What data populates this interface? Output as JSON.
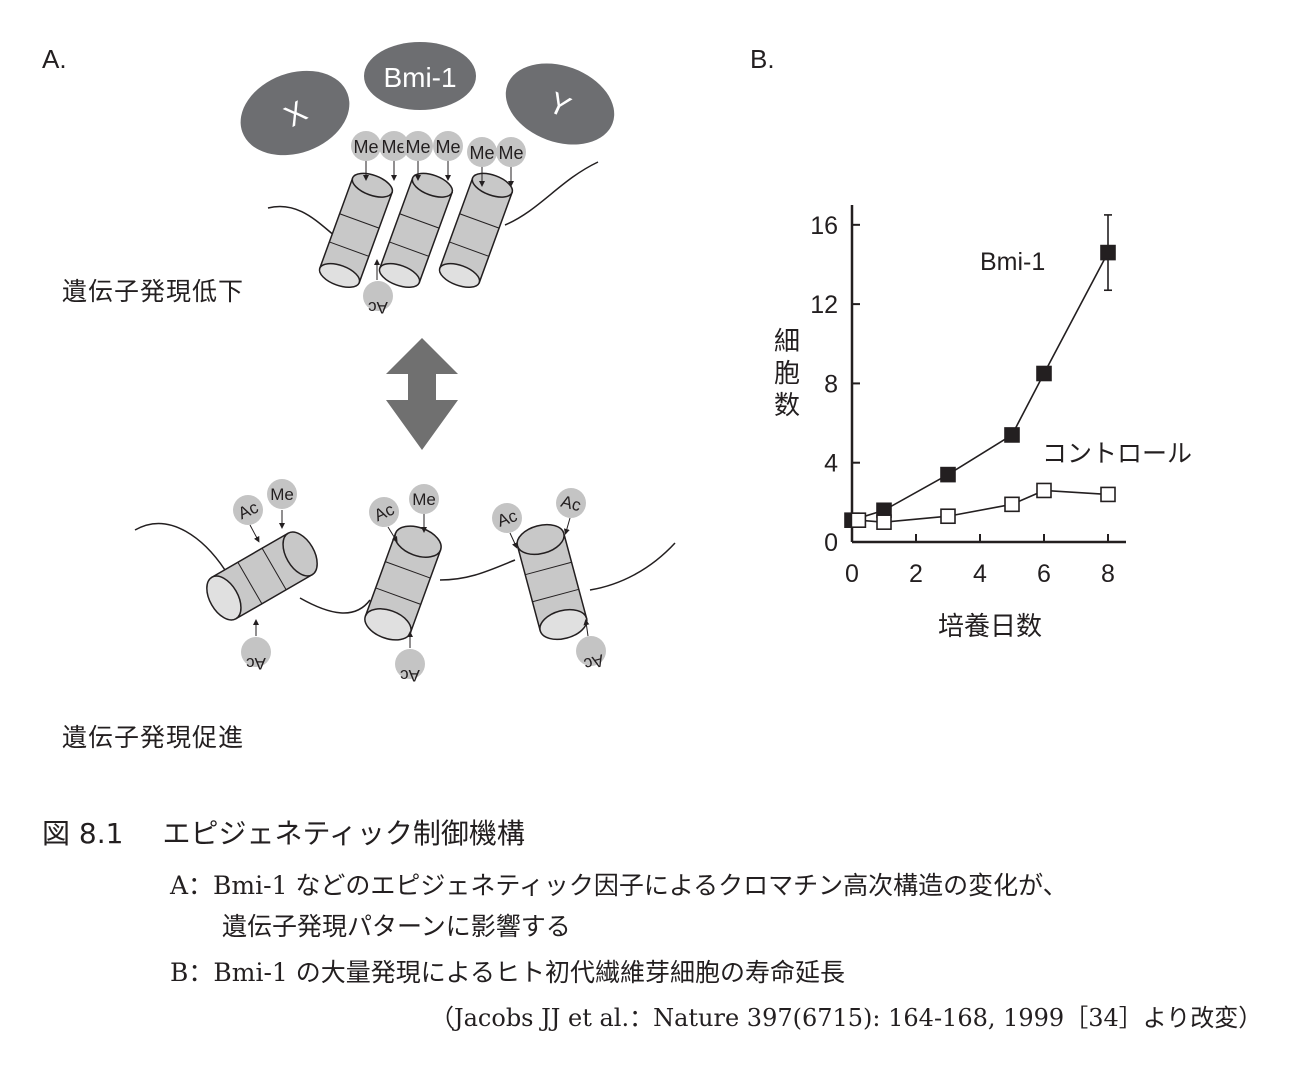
{
  "panel_a": {
    "label": "A.",
    "bmi1_label": "Bmi-1",
    "x_label": "X",
    "y_label": "Y",
    "me": "Me",
    "ac": "Ac",
    "low_expression": "遺伝子発現低下",
    "high_expression": "遺伝子発現促進"
  },
  "panel_b": {
    "label": "B.",
    "chart_data": {
      "type": "line",
      "xlabel": "培養日数",
      "ylabel": "細胞数",
      "xlim": [
        0,
        9
      ],
      "ylim": [
        0,
        17
      ],
      "xticks": [
        0,
        2,
        4,
        6,
        8
      ],
      "yticks": [
        0,
        4,
        8,
        12,
        16
      ],
      "grid": false,
      "series": [
        {
          "name": "Bmi-1",
          "marker": "filled-square",
          "color": "#231f20",
          "x": [
            0,
            1,
            3,
            5,
            6,
            8
          ],
          "y": [
            1.1,
            1.6,
            3.4,
            5.4,
            8.5,
            14.6
          ],
          "error_bar": {
            "index": 5,
            "low": 12.7,
            "high": 16.5
          }
        },
        {
          "name": "コントロール",
          "marker": "open-square",
          "color": "#231f20",
          "x": [
            0.2,
            1,
            3,
            5,
            6,
            8
          ],
          "y": [
            1.1,
            1.0,
            1.3,
            1.9,
            2.6,
            2.4
          ]
        }
      ]
    }
  },
  "caption": {
    "figure_no": "図 8.1",
    "title": "エピジェネティック制御機構",
    "line_a1": "A：Bmi-1 などのエピジェネティック因子によるクロマチン高次構造の変化が、",
    "line_a2": "遺伝子発現パターンに影響する",
    "line_b": "B：Bmi-1 の大量発現によるヒト初代繊維芽細胞の寿命延長",
    "source": "（Jacobs JJ et al.：Nature 397(6715): 164-168, 1999［34］より改変）"
  },
  "colors": {
    "dark_gray": "#6d6e71",
    "nucleosome": "#c8c8c8",
    "nucleosome_light": "#e0e0e0",
    "tag_gray": "#c4c4c4",
    "ink": "#231f20",
    "arrow": "#707070"
  }
}
